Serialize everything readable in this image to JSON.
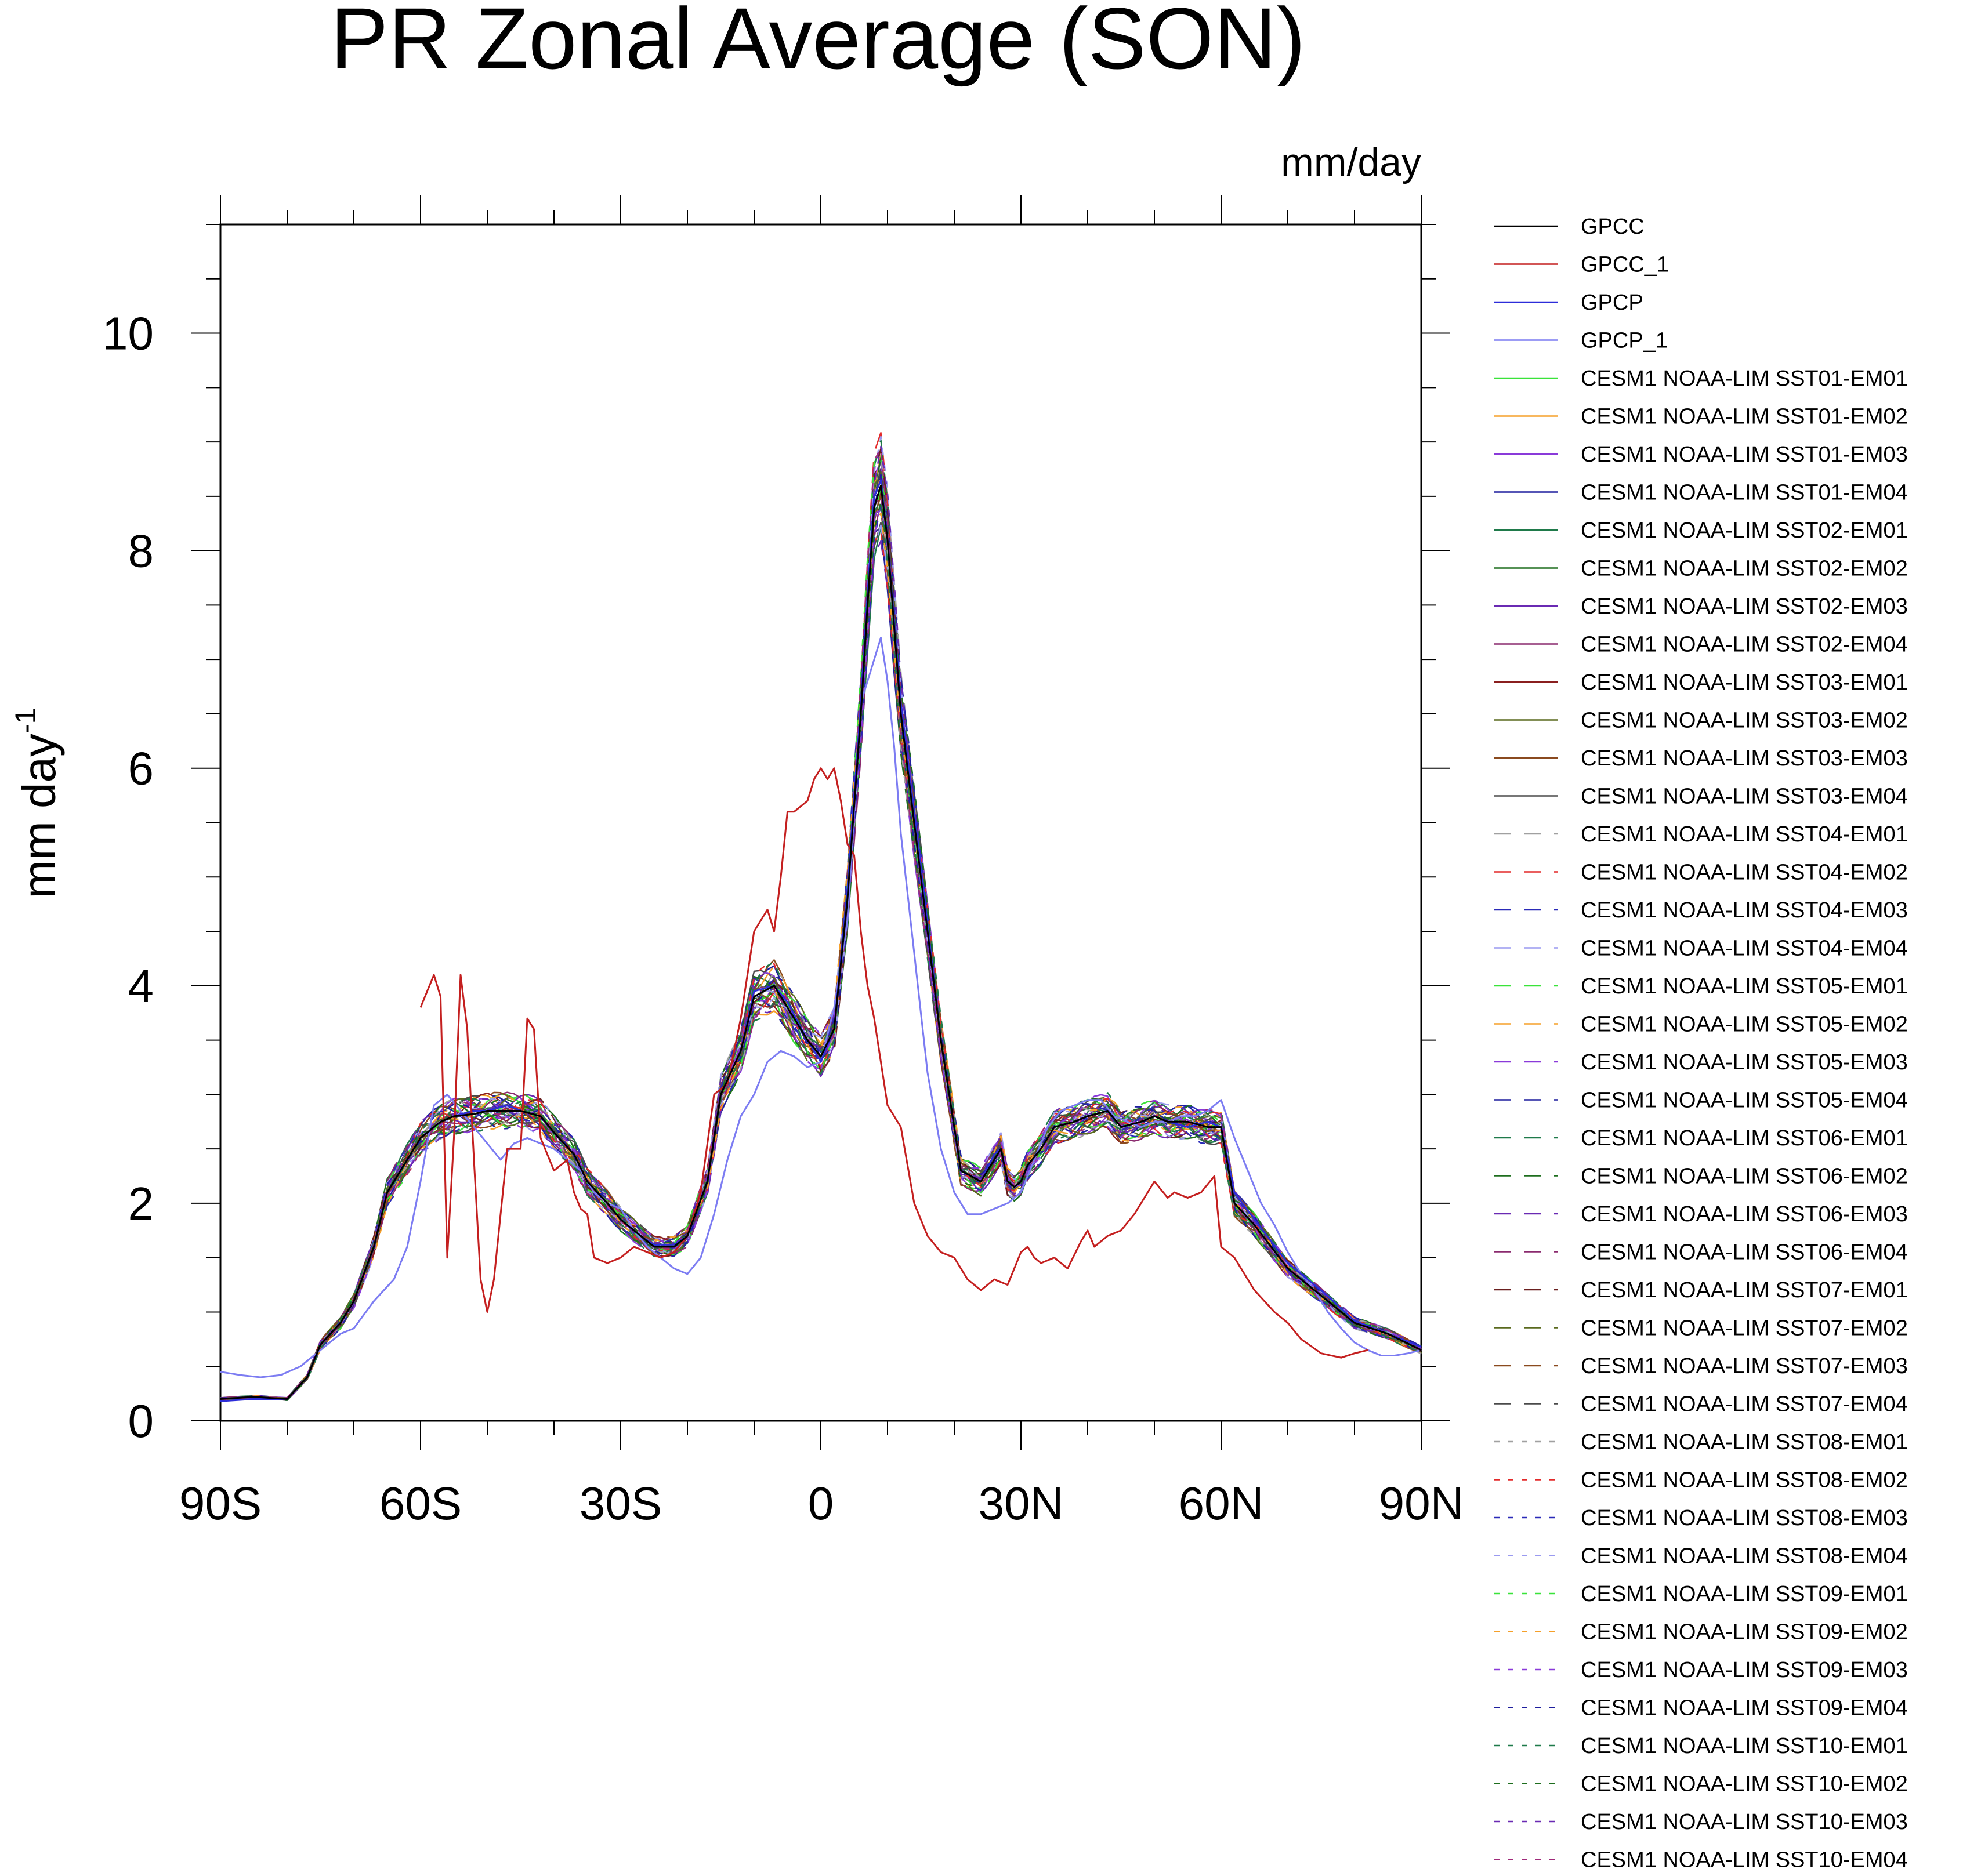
{
  "chart_data": {
    "type": "line",
    "title": "PR Zonal Average (SON)",
    "units_label": "mm/day",
    "ylabel": "mm day",
    "ylabel_sup": "-1",
    "xlabel": "",
    "xlim": [
      -90,
      90
    ],
    "ylim": [
      0,
      11
    ],
    "x_ticks": [
      {
        "value": -90,
        "label": "90S"
      },
      {
        "value": -60,
        "label": "60S"
      },
      {
        "value": -30,
        "label": "30S"
      },
      {
        "value": 0,
        "label": "0"
      },
      {
        "value": 30,
        "label": "30N"
      },
      {
        "value": 60,
        "label": "60N"
      },
      {
        "value": 90,
        "label": "90N"
      }
    ],
    "y_ticks": [
      {
        "value": 0,
        "label": "0"
      },
      {
        "value": 2,
        "label": "2"
      },
      {
        "value": 4,
        "label": "4"
      },
      {
        "value": 6,
        "label": "6"
      },
      {
        "value": 8,
        "label": "8"
      },
      {
        "value": 10,
        "label": "10"
      }
    ],
    "legend_position": "right",
    "series": [
      {
        "name": "GPCC",
        "color": "#000000",
        "dash": "solid",
        "x": [
          -90,
          -85,
          -80,
          -77,
          -75,
          -72,
          -70,
          -67,
          -65,
          -62,
          -60,
          -57,
          -55,
          -52,
          -50,
          -47,
          -45,
          -42,
          -40,
          -37,
          -35,
          -32,
          -30,
          -27,
          -25,
          -22,
          -20,
          -17,
          -15,
          -12,
          -10,
          -7,
          -5,
          -2,
          0,
          2,
          4,
          6,
          7,
          8,
          9,
          10,
          12,
          15,
          18,
          21,
          24,
          26,
          27,
          28,
          29,
          30,
          31,
          33,
          35,
          38,
          40,
          43,
          45,
          48,
          50,
          52,
          55,
          58,
          60,
          62,
          65,
          70,
          75,
          80,
          85,
          90
        ],
        "y": [
          0.2,
          0.22,
          0.2,
          0.4,
          0.7,
          0.9,
          1.1,
          1.6,
          2.1,
          2.4,
          2.6,
          2.75,
          2.8,
          2.82,
          2.85,
          2.85,
          2.85,
          2.8,
          2.65,
          2.45,
          2.2,
          2.0,
          1.85,
          1.7,
          1.6,
          1.6,
          1.7,
          2.2,
          3.0,
          3.4,
          3.9,
          4.0,
          3.8,
          3.5,
          3.35,
          3.6,
          4.8,
          6.5,
          7.5,
          8.4,
          8.6,
          8.1,
          6.5,
          5.0,
          3.5,
          2.3,
          2.2,
          2.4,
          2.5,
          2.2,
          2.15,
          2.2,
          2.35,
          2.5,
          2.7,
          2.75,
          2.8,
          2.85,
          2.7,
          2.75,
          2.8,
          2.75,
          2.75,
          2.7,
          2.7,
          2.0,
          1.8,
          1.4,
          1.15,
          0.9,
          0.8,
          0.65
        ]
      },
      {
        "name": "GPCC_1",
        "color": "#c41f1f",
        "dash": "solid",
        "x": [
          -60,
          -58,
          -57,
          -56,
          -55,
          -54,
          -53,
          -52,
          -51,
          -50,
          -49,
          -47,
          -45,
          -44,
          -43,
          -42,
          -40,
          -38,
          -37,
          -36,
          -35,
          -34,
          -32,
          -30,
          -28,
          -26,
          -24,
          -22,
          -20,
          -18,
          -16,
          -14,
          -12,
          -10,
          -8,
          -7,
          -6,
          -5,
          -4,
          -2,
          -1,
          0,
          1,
          2,
          3,
          4,
          5,
          6,
          7,
          8,
          9,
          10,
          12,
          14,
          16,
          18,
          20,
          22,
          24,
          26,
          28,
          30,
          31,
          32,
          33,
          35,
          37,
          39,
          40,
          41,
          43,
          45,
          47,
          50,
          52,
          53,
          55,
          57,
          59,
          60,
          62,
          65,
          68,
          70,
          72,
          75,
          78,
          80,
          82
        ],
        "y": [
          3.8,
          4.1,
          3.9,
          1.5,
          2.6,
          4.1,
          3.6,
          2.4,
          1.3,
          1.0,
          1.3,
          2.5,
          2.5,
          3.7,
          3.6,
          2.6,
          2.3,
          2.4,
          2.1,
          1.95,
          1.9,
          1.5,
          1.45,
          1.5,
          1.6,
          1.55,
          1.5,
          1.55,
          1.7,
          2.1,
          3.0,
          3.1,
          3.7,
          4.5,
          4.7,
          4.5,
          5.0,
          5.6,
          5.6,
          5.7,
          5.9,
          6.0,
          5.9,
          6.0,
          5.7,
          5.3,
          5.2,
          4.5,
          4.0,
          3.7,
          3.3,
          2.9,
          2.7,
          2.0,
          1.7,
          1.55,
          1.5,
          1.3,
          1.2,
          1.3,
          1.25,
          1.55,
          1.6,
          1.5,
          1.45,
          1.5,
          1.4,
          1.65,
          1.75,
          1.6,
          1.7,
          1.75,
          1.9,
          2.2,
          2.05,
          2.1,
          2.05,
          2.1,
          2.25,
          1.6,
          1.5,
          1.2,
          1.0,
          0.9,
          0.75,
          0.62,
          0.58,
          0.62,
          0.65
        ]
      },
      {
        "name": "GPCP",
        "color": "#2d2dd9",
        "dash": "solid",
        "x": [
          -90,
          -85,
          -80,
          -77,
          -75,
          -72,
          -70,
          -67,
          -65,
          -62,
          -60,
          -57,
          -55,
          -52,
          -50,
          -47,
          -45,
          -42,
          -40,
          -37,
          -35,
          -32,
          -30,
          -27,
          -25,
          -22,
          -20,
          -17,
          -15,
          -12,
          -10,
          -7,
          -5,
          -2,
          0,
          2,
          4,
          6,
          7,
          8,
          9,
          10,
          12,
          15,
          18,
          21,
          24,
          26,
          27,
          28,
          29,
          30,
          31,
          33,
          35,
          38,
          40,
          43,
          45,
          48,
          50,
          52,
          55,
          58,
          60,
          62,
          65,
          70,
          75,
          80,
          85,
          90
        ],
        "y": [
          0.18,
          0.2,
          0.2,
          0.4,
          0.7,
          0.9,
          1.1,
          1.6,
          2.1,
          2.4,
          2.6,
          2.75,
          2.8,
          2.85,
          2.85,
          2.9,
          2.85,
          2.8,
          2.65,
          2.45,
          2.2,
          2.0,
          1.85,
          1.7,
          1.62,
          1.62,
          1.7,
          2.2,
          3.0,
          3.4,
          3.95,
          4.0,
          3.85,
          3.5,
          3.3,
          3.6,
          4.9,
          6.6,
          7.6,
          8.5,
          8.65,
          8.1,
          6.6,
          5.1,
          3.5,
          2.3,
          2.2,
          2.45,
          2.5,
          2.2,
          2.15,
          2.2,
          2.35,
          2.5,
          2.7,
          2.75,
          2.8,
          2.85,
          2.7,
          2.75,
          2.8,
          2.75,
          2.7,
          2.75,
          2.7,
          2.1,
          1.85,
          1.45,
          1.2,
          0.92,
          0.8,
          0.68
        ]
      },
      {
        "name": "GPCP_1",
        "color": "#7c7cf2",
        "dash": "solid",
        "x": [
          -90,
          -87,
          -84,
          -81,
          -78,
          -75,
          -72,
          -70,
          -67,
          -64,
          -62,
          -60,
          -58,
          -56,
          -54,
          -52,
          -50,
          -48,
          -46,
          -44,
          -42,
          -40,
          -38,
          -36,
          -34,
          -32,
          -30,
          -28,
          -26,
          -24,
          -22,
          -20,
          -18,
          -16,
          -14,
          -12,
          -10,
          -8,
          -6,
          -4,
          -2,
          0,
          2,
          4,
          6,
          8,
          9,
          10,
          11,
          12,
          14,
          16,
          18,
          20,
          22,
          24,
          26,
          28,
          30,
          32,
          34,
          36,
          38,
          40,
          42,
          44,
          46,
          48,
          50,
          52,
          54,
          56,
          58,
          60,
          62,
          64,
          66,
          68,
          70,
          72,
          74,
          76,
          78,
          80,
          82,
          84,
          86,
          88,
          90
        ],
        "y": [
          0.45,
          0.42,
          0.4,
          0.42,
          0.5,
          0.65,
          0.8,
          0.85,
          1.1,
          1.3,
          1.6,
          2.2,
          2.9,
          3.0,
          2.85,
          2.7,
          2.55,
          2.4,
          2.55,
          2.6,
          2.55,
          2.5,
          2.4,
          2.3,
          2.1,
          2.0,
          1.95,
          1.75,
          1.6,
          1.5,
          1.4,
          1.35,
          1.5,
          1.9,
          2.4,
          2.8,
          3.0,
          3.3,
          3.4,
          3.35,
          3.25,
          3.3,
          3.8,
          4.6,
          6.6,
          7.0,
          7.2,
          6.8,
          6.2,
          5.4,
          4.3,
          3.2,
          2.5,
          2.1,
          1.9,
          1.9,
          1.95,
          2.0,
          2.1,
          2.4,
          2.7,
          2.85,
          2.9,
          2.95,
          2.95,
          2.8,
          2.75,
          2.7,
          2.75,
          2.75,
          2.8,
          2.8,
          2.85,
          2.95,
          2.6,
          2.3,
          2.0,
          1.8,
          1.55,
          1.35,
          1.2,
          1.0,
          0.85,
          0.72,
          0.65,
          0.6,
          0.6,
          0.62,
          0.65
        ]
      },
      {
        "name": "CESM1 NOAA-LIM SST01-EM01",
        "color": "#3ae33a",
        "dash": "solid"
      },
      {
        "name": "CESM1 NOAA-LIM SST01-EM02",
        "color": "#f5a02a",
        "dash": "solid"
      },
      {
        "name": "CESM1 NOAA-LIM SST01-EM03",
        "color": "#8a3ad9",
        "dash": "solid"
      },
      {
        "name": "CESM1 NOAA-LIM SST01-EM04",
        "color": "#1f1f9e",
        "dash": "solid"
      },
      {
        "name": "CESM1 NOAA-LIM SST02-EM01",
        "color": "#1f7a4a",
        "dash": "solid"
      },
      {
        "name": "CESM1 NOAA-LIM SST02-EM02",
        "color": "#1e6e1e",
        "dash": "solid"
      },
      {
        "name": "CESM1 NOAA-LIM SST02-EM03",
        "color": "#6a2ab3",
        "dash": "solid"
      },
      {
        "name": "CESM1 NOAA-LIM SST02-EM04",
        "color": "#8a2a6e",
        "dash": "solid"
      },
      {
        "name": "CESM1 NOAA-LIM SST03-EM01",
        "color": "#8a1f1f",
        "dash": "solid"
      },
      {
        "name": "CESM1 NOAA-LIM SST03-EM02",
        "color": "#5a6a1f",
        "dash": "solid"
      },
      {
        "name": "CESM1 NOAA-LIM SST03-EM03",
        "color": "#8a4a1f",
        "dash": "solid"
      },
      {
        "name": "CESM1 NOAA-LIM SST03-EM04",
        "color": "#4a4a4a",
        "dash": "solid"
      },
      {
        "name": "CESM1 NOAA-LIM SST04-EM01",
        "color": "#a0a0a0",
        "dash": "long"
      },
      {
        "name": "CESM1 NOAA-LIM SST04-EM02",
        "color": "#e32a2a",
        "dash": "long"
      },
      {
        "name": "CESM1 NOAA-LIM SST04-EM03",
        "color": "#2a2ab8",
        "dash": "long"
      },
      {
        "name": "CESM1 NOAA-LIM SST04-EM04",
        "color": "#9a9af0",
        "dash": "long"
      },
      {
        "name": "CESM1 NOAA-LIM SST05-EM01",
        "color": "#3ae33a",
        "dash": "long"
      },
      {
        "name": "CESM1 NOAA-LIM SST05-EM02",
        "color": "#f5a02a",
        "dash": "long"
      },
      {
        "name": "CESM1 NOAA-LIM SST05-EM03",
        "color": "#8a3ad9",
        "dash": "long"
      },
      {
        "name": "CESM1 NOAA-LIM SST05-EM04",
        "color": "#1f1f9e",
        "dash": "long"
      },
      {
        "name": "CESM1 NOAA-LIM SST06-EM01",
        "color": "#1f7a4a",
        "dash": "long"
      },
      {
        "name": "CESM1 NOAA-LIM SST06-EM02",
        "color": "#1e6e1e",
        "dash": "long"
      },
      {
        "name": "CESM1 NOAA-LIM SST06-EM03",
        "color": "#6a2ab3",
        "dash": "long"
      },
      {
        "name": "CESM1 NOAA-LIM SST06-EM04",
        "color": "#8a2a6e",
        "dash": "long"
      },
      {
        "name": "CESM1 NOAA-LIM SST07-EM01",
        "color": "#6a1f1f",
        "dash": "long"
      },
      {
        "name": "CESM1 NOAA-LIM SST07-EM02",
        "color": "#5a6a1f",
        "dash": "long"
      },
      {
        "name": "CESM1 NOAA-LIM SST07-EM03",
        "color": "#8a4a1f",
        "dash": "long"
      },
      {
        "name": "CESM1 NOAA-LIM SST07-EM04",
        "color": "#4a4a4a",
        "dash": "long"
      },
      {
        "name": "CESM1 NOAA-LIM SST08-EM01",
        "color": "#a0a0a0",
        "dash": "short"
      },
      {
        "name": "CESM1 NOAA-LIM SST08-EM02",
        "color": "#e32a2a",
        "dash": "short"
      },
      {
        "name": "CESM1 NOAA-LIM SST08-EM03",
        "color": "#2a2ab8",
        "dash": "short"
      },
      {
        "name": "CESM1 NOAA-LIM SST08-EM04",
        "color": "#9a9af0",
        "dash": "short"
      },
      {
        "name": "CESM1 NOAA-LIM SST09-EM01",
        "color": "#3ae33a",
        "dash": "short"
      },
      {
        "name": "CESM1 NOAA-LIM SST09-EM02",
        "color": "#f5a02a",
        "dash": "short"
      },
      {
        "name": "CESM1 NOAA-LIM SST09-EM03",
        "color": "#8a3ad9",
        "dash": "short"
      },
      {
        "name": "CESM1 NOAA-LIM SST09-EM04",
        "color": "#1f1f9e",
        "dash": "short"
      },
      {
        "name": "CESM1 NOAA-LIM SST10-EM01",
        "color": "#1f7a4a",
        "dash": "short"
      },
      {
        "name": "CESM1 NOAA-LIM SST10-EM02",
        "color": "#1e6e1e",
        "dash": "short"
      },
      {
        "name": "CESM1 NOAA-LIM SST10-EM03",
        "color": "#6a2ab3",
        "dash": "short"
      },
      {
        "name": "CESM1 NOAA-LIM SST10-EM04",
        "color": "#a02a7a",
        "dash": "short"
      }
    ]
  }
}
